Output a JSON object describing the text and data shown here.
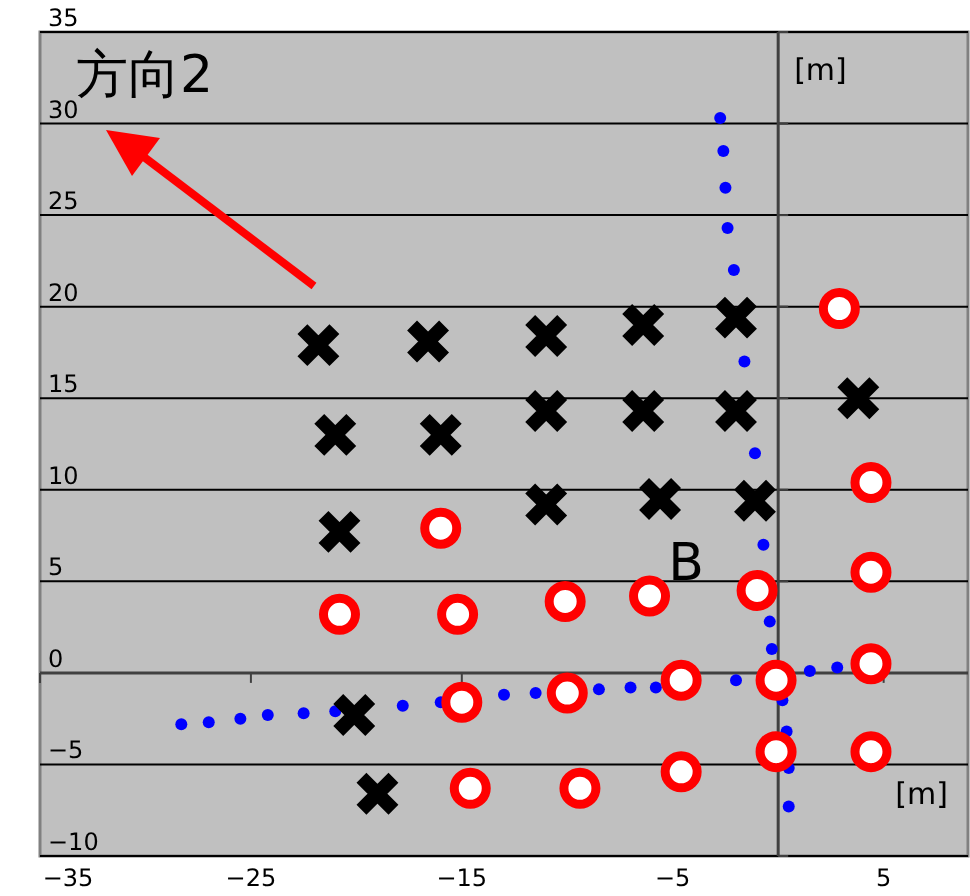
{
  "chart_data": {
    "type": "scatter",
    "xlabel": "[m]",
    "ylabel": "[m]",
    "xlim": [
      -35,
      9
    ],
    "ylim": [
      -10,
      35
    ],
    "xticks": [
      -35,
      -25,
      -15,
      -5,
      5
    ],
    "yticks": [
      -10,
      -5,
      0,
      5,
      10,
      15,
      20,
      25,
      30,
      35
    ],
    "grid": "y",
    "annotations": [
      "方向2",
      "B"
    ],
    "series": [
      {
        "color": "#0000ff",
        "marker": "circle",
        "x": [
          -28.3,
          -27,
          -25.5,
          -24.2,
          -22.5,
          -21,
          -17.8,
          -16,
          -13,
          -11.5,
          -8.5,
          -7,
          -5.8,
          -2,
          1.5,
          2.8,
          -2.75,
          -2.6,
          -2.5,
          -2.4,
          -2.1,
          -1.6,
          -1.1,
          -0.7,
          -0.4,
          -0.3,
          0.2,
          0.4,
          0.5,
          0.5
        ],
        "values": [
          -2.8,
          -2.7,
          -2.5,
          -2.3,
          -2.2,
          -2.1,
          -1.8,
          -1.6,
          -1.2,
          -1.1,
          -0.9,
          -0.8,
          -0.8,
          -0.4,
          0.1,
          0.3,
          30.3,
          28.5,
          26.5,
          24.3,
          22,
          17,
          12,
          7,
          2.8,
          1.3,
          -1.5,
          -3.2,
          -5.2,
          -7.3
        ]
      },
      {
        "color": "#000000",
        "marker": "cross",
        "x": [
          -21.8,
          -16.6,
          -11,
          -6.4,
          -2,
          -21,
          -16,
          -11,
          -6.4,
          -2,
          3.8,
          -20.8,
          -11,
          -5.6,
          -1.1,
          -20.1,
          -19
        ],
        "values": [
          17.9,
          18.1,
          18.4,
          19,
          19.4,
          13,
          13,
          14.3,
          14.3,
          14.3,
          15,
          7.7,
          9.2,
          9.5,
          9.4,
          -2.3,
          -6.6
        ]
      },
      {
        "color": "#ff0000",
        "marker": "circle",
        "x": [
          2.9,
          4.4,
          4.4,
          4.4,
          4.4,
          -16,
          -20.8,
          -15.2,
          -10.1,
          -6.1,
          -1,
          -15,
          -10,
          -4.6,
          -0.1,
          -0.1,
          -4.6,
          -9.4,
          -14.6
        ],
        "values": [
          19.9,
          10.4,
          5.5,
          0.5,
          -4.3,
          7.9,
          3.2,
          3.2,
          3.9,
          4.2,
          4.5,
          -1.6,
          -1.1,
          -0.4,
          -0.4,
          -4.3,
          -5.4,
          -6.3,
          -6.3
        ]
      }
    ]
  }
}
